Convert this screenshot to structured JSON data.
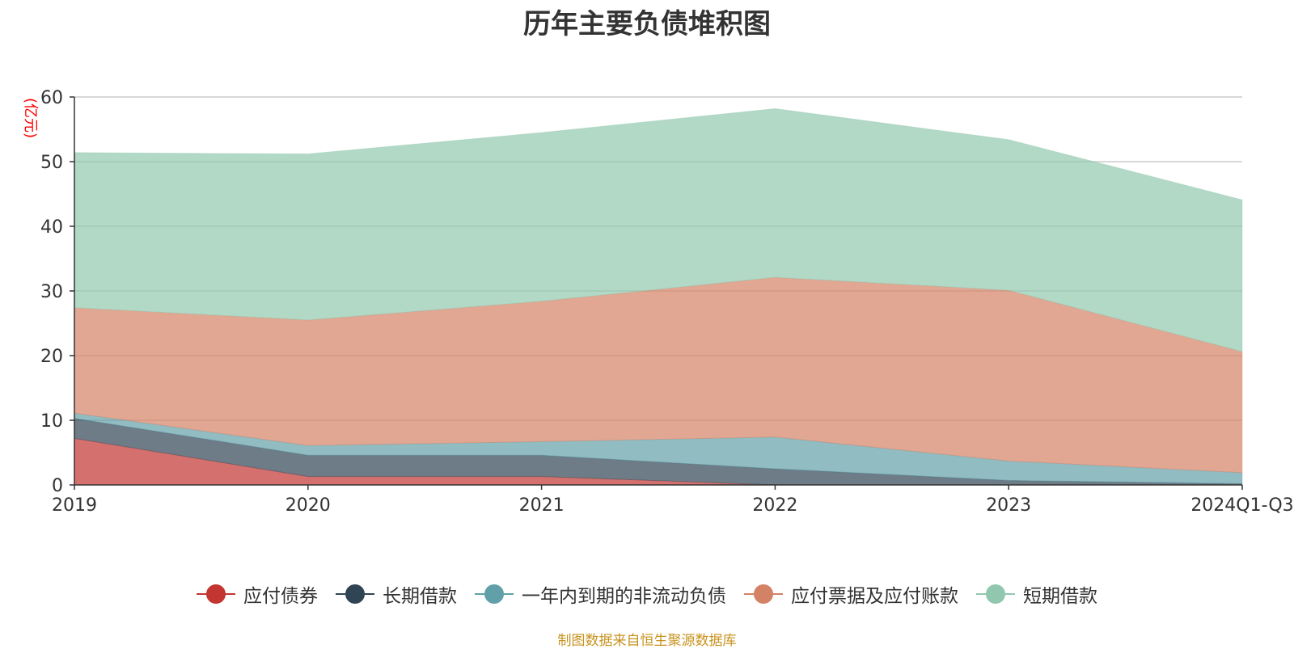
{
  "chart_data": {
    "type": "area",
    "stacked": true,
    "title": "历年主要负债堆积图",
    "ylabel": "(亿元)",
    "xlabel": "",
    "ylim": [
      0,
      60
    ],
    "yticks": [
      0,
      10,
      20,
      30,
      40,
      50,
      60
    ],
    "categories": [
      "2019",
      "2020",
      "2021",
      "2022",
      "2023",
      "2024Q1-Q3"
    ],
    "legend_position": "bottom-center",
    "series": [
      {
        "name": "应付债券",
        "color": "#c23531",
        "values": [
          7.2,
          1.3,
          1.3,
          0.0,
          0.0,
          0.0
        ]
      },
      {
        "name": "长期借款",
        "color": "#2f4554",
        "values": [
          3.1,
          3.3,
          3.3,
          2.5,
          0.7,
          0.2
        ]
      },
      {
        "name": "一年内到期的非流动负债",
        "color": "#61a0a8",
        "values": [
          0.8,
          1.5,
          2.1,
          4.9,
          3.0,
          1.7
        ]
      },
      {
        "name": "应付票据及应付账款",
        "color": "#d48265",
        "values": [
          16.3,
          19.4,
          21.7,
          24.7,
          26.4,
          18.7
        ]
      },
      {
        "name": "短期借款",
        "color": "#91c7ae",
        "values": [
          24.0,
          25.7,
          26.1,
          26.1,
          23.3,
          23.5
        ]
      }
    ]
  },
  "source_note": "制图数据来自恒生聚源数据库"
}
